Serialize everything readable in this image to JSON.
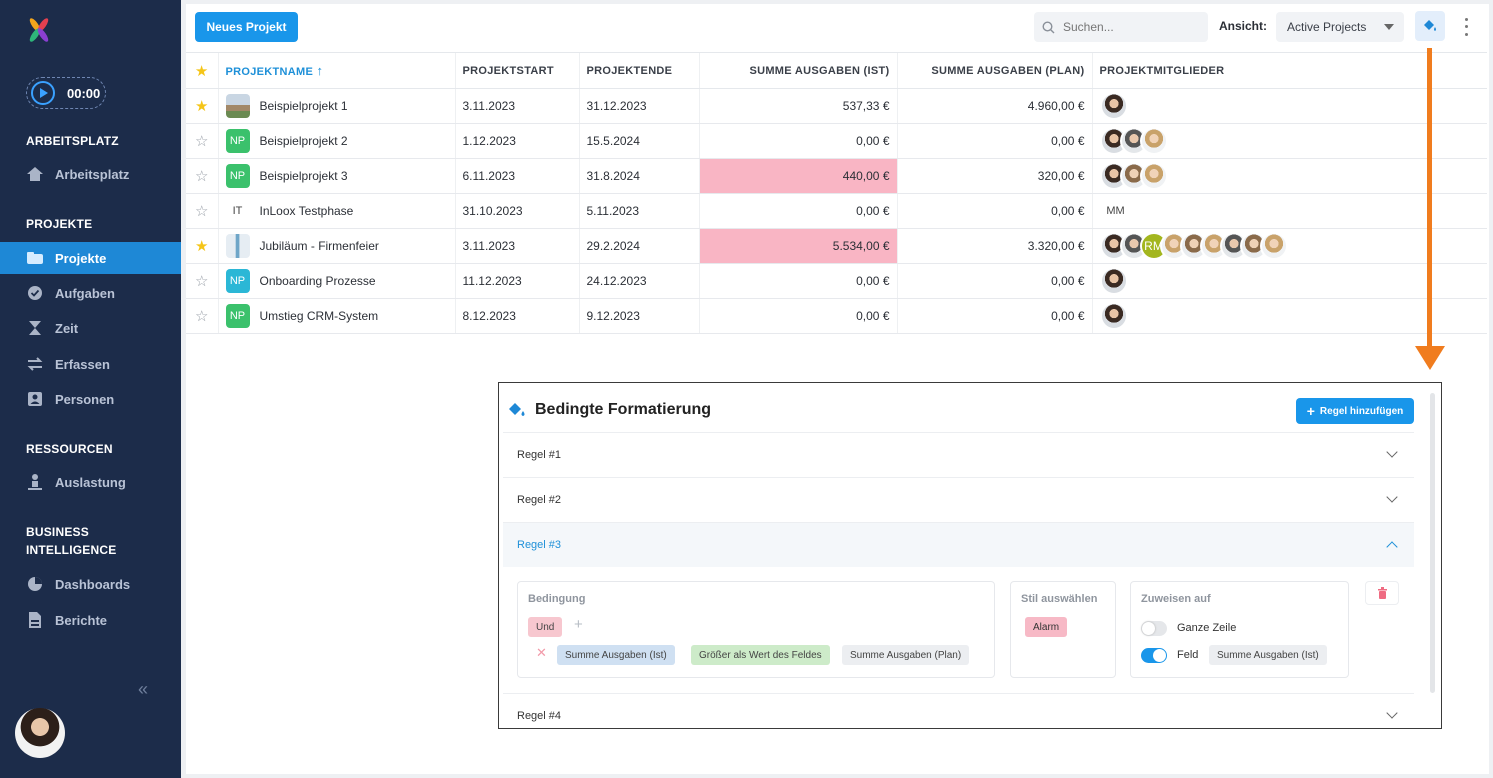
{
  "sidebar": {
    "timer": "00:00",
    "sections": [
      {
        "title": "ARBEITSPLATZ",
        "items": [
          {
            "label": "Arbeitsplatz",
            "icon": "home-icon"
          }
        ]
      },
      {
        "title": "PROJEKTE",
        "items": [
          {
            "label": "Projekte",
            "icon": "folder-icon",
            "active": true
          },
          {
            "label": "Aufgaben",
            "icon": "check-circle-icon"
          },
          {
            "label": "Zeit",
            "icon": "hourglass-icon"
          },
          {
            "label": "Erfassen",
            "icon": "arrows-icon"
          },
          {
            "label": "Personen",
            "icon": "contact-icon"
          }
        ]
      },
      {
        "title": "RESSOURCEN",
        "items": [
          {
            "label": "Auslastung",
            "icon": "person-load-icon"
          }
        ]
      },
      {
        "title_line1": "BUSINESS",
        "title_line2": "INTELLIGENCE",
        "items": [
          {
            "label": "Dashboards",
            "icon": "pie-chart-icon"
          },
          {
            "label": "Berichte",
            "icon": "report-icon"
          }
        ]
      }
    ]
  },
  "toolbar": {
    "new_project": "Neues Projekt",
    "search_placeholder": "Suchen...",
    "view_label": "Ansicht:",
    "view_value": "Active Projects"
  },
  "table": {
    "headers": [
      "PROJEKTNAME",
      "PROJEKTSTART",
      "PROJEKTENDE",
      "SUMME AUSGABEN (IST)",
      "SUMME AUSGABEN (PLAN)",
      "PROJEKTMITGLIEDER"
    ],
    "rows": [
      {
        "starred": true,
        "badge": "",
        "name": "Beispielprojekt 1",
        "start": "3.11.2023",
        "end": "31.12.2023",
        "ist": "537,33 €",
        "plan": "4.960,00 €"
      },
      {
        "starred": false,
        "badge": "NP",
        "name": "Beispielprojekt 2",
        "start": "1.12.2023",
        "end": "15.5.2024",
        "ist": "0,00 €",
        "plan": "0,00 €"
      },
      {
        "starred": false,
        "badge": "NP",
        "name": "Beispielprojekt 3",
        "start": "6.11.2023",
        "end": "31.8.2024",
        "ist": "440,00 €",
        "plan": "320,00 €"
      },
      {
        "starred": false,
        "badge": "IT",
        "name": "InLoox Testphase",
        "start": "31.10.2023",
        "end": "5.11.2023",
        "ist": "0,00 €",
        "plan": "0,00 €",
        "member_initials": "MM"
      },
      {
        "starred": true,
        "badge": "",
        "name": "Jubiläum - Firmenfeier",
        "start": "3.11.2023",
        "end": "29.2.2024",
        "ist": "5.534,00 €",
        "plan": "3.320,00 €",
        "member_initials": "RM"
      },
      {
        "starred": false,
        "badge": "NP",
        "name": "Onboarding Prozesse",
        "start": "11.12.2023",
        "end": "24.12.2023",
        "ist": "0,00 €",
        "plan": "0,00 €"
      },
      {
        "starred": false,
        "badge": "NP",
        "name": "Umstieg CRM-System",
        "start": "8.12.2023",
        "end": "9.12.2023",
        "ist": "0,00 €",
        "plan": "0,00 €"
      }
    ]
  },
  "panel": {
    "title": "Bedingte Formatierung",
    "add_rule": "Regel hinzufügen",
    "rules": [
      "Regel #1",
      "Regel #2",
      "Regel #3",
      "Regel #4"
    ],
    "condition_title": "Bedingung",
    "condition_logic": "Und",
    "condition_field": "Summe Ausgaben (Ist)",
    "condition_operator": "Größer als Wert des Feldes",
    "condition_value": "Summe Ausgaben (Plan)",
    "style_title": "Stil auswählen",
    "style_value": "Alarm",
    "assign_title": "Zuweisen auf",
    "assign_row": "Ganze Zeile",
    "assign_field": "Feld",
    "assign_field_value": "Summe Ausgaben (Ist)"
  },
  "colors": {
    "accent": "#1996ea",
    "sidebar": "#1c2c4a",
    "alarm": "#f9b5c4",
    "arrow": "#f07c1e"
  }
}
